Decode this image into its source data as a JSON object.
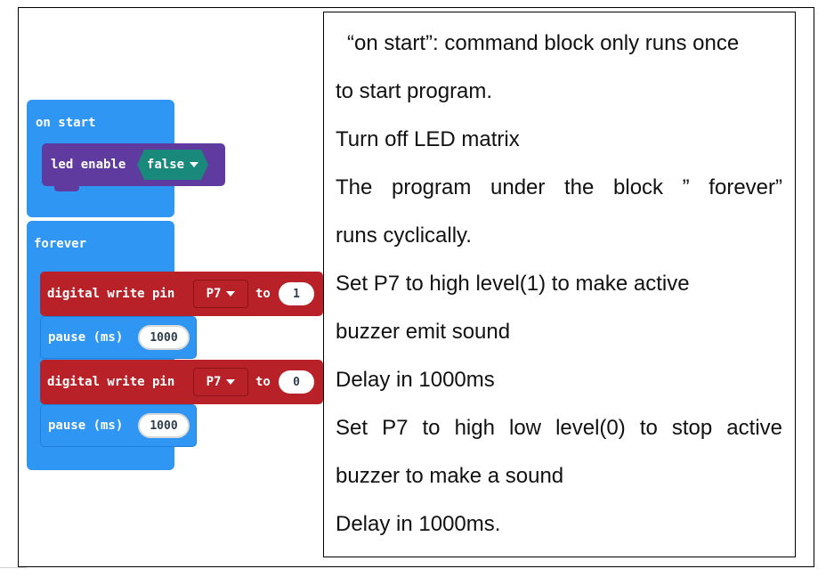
{
  "blocks": {
    "on_start": {
      "label": "on start",
      "child": {
        "label": "led enable",
        "value": "false"
      }
    },
    "forever": {
      "label": "forever",
      "steps": [
        {
          "kind": "write",
          "label": "digital write pin",
          "pin": "P7",
          "to_label": "to",
          "value": "1"
        },
        {
          "kind": "pause",
          "label": "pause (ms)",
          "value": "1000"
        },
        {
          "kind": "write",
          "label": "digital write pin",
          "pin": "P7",
          "to_label": "to",
          "value": "0"
        },
        {
          "kind": "pause",
          "label": "pause (ms)",
          "value": "1000"
        }
      ]
    }
  },
  "description": [
    "“on start”: command block only runs once",
    "to start program.",
    "Turn off LED matrix",
    "The program under the block ” forever”",
    "runs cyclically.",
    "Set P7 to high level(1) to make active",
    "buzzer emit sound",
    "Delay in 1000ms",
    "Set P7 to high low level(0) to stop active",
    "buzzer to make a sound",
    "Delay in 1000ms."
  ],
  "colors": {
    "hat_blue": "#2f97f3",
    "led_purple": "#5f3a9f",
    "pins_red": "#b72127",
    "logic_green": "#18897b"
  }
}
